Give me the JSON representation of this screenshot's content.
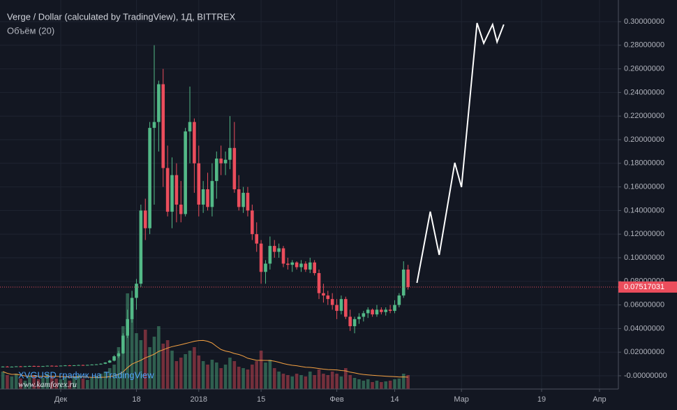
{
  "chart_data": {
    "type": "candlestick",
    "title": "Verge / Dollar (calculated by TradingView), 1Д, BITTREX",
    "volume_label": "Объём (20)",
    "volume_ma_length": 20,
    "watermark": "XVGUSD график на TradingView",
    "watermark_site": "www.kamforex.ru",
    "up_color": "#53b987",
    "down_color": "#eb4d5c",
    "volume_ma_color": "#f5a142",
    "grid": true,
    "x": [
      -13,
      -12,
      -11,
      -10,
      -9,
      -8,
      -7,
      -6,
      -5,
      -4,
      -3,
      -2,
      -1,
      0,
      1,
      2,
      3,
      4,
      5,
      6,
      7,
      8,
      9,
      10,
      11,
      12,
      13,
      14,
      15,
      16,
      17,
      18,
      19,
      20,
      21,
      22,
      23,
      24,
      25,
      26,
      27,
      28,
      29,
      30,
      31,
      32,
      33,
      34,
      35,
      36,
      37,
      38,
      39,
      40,
      41,
      42,
      43,
      44,
      45,
      46,
      47,
      48,
      49,
      50,
      51,
      52,
      53,
      54,
      55,
      56,
      57,
      58,
      59,
      60,
      61,
      62,
      63,
      64,
      65,
      66,
      67,
      68,
      69,
      70,
      71,
      72,
      73,
      74,
      75,
      76,
      77,
      78
    ],
    "open": [
      0.0075,
      0.0078,
      0.0076,
      0.0077,
      0.008,
      0.0079,
      0.0081,
      0.0083,
      0.0082,
      0.008,
      0.0082,
      0.0085,
      0.0084,
      0.0083,
      0.0086,
      0.0088,
      0.0087,
      0.0089,
      0.0091,
      0.009,
      0.0092,
      0.0095,
      0.0097,
      0.0102,
      0.0112,
      0.0128,
      0.0165,
      0.019,
      0.034,
      0.048,
      0.066,
      0.078,
      0.14,
      0.125,
      0.21,
      0.215,
      0.247,
      0.176,
      0.139,
      0.17,
      0.145,
      0.137,
      0.207,
      0.215,
      0.18,
      0.145,
      0.158,
      0.143,
      0.165,
      0.184,
      0.18,
      0.183,
      0.193,
      0.158,
      0.143,
      0.155,
      0.14,
      0.12,
      0.112,
      0.088,
      0.095,
      0.11,
      0.105,
      0.108,
      0.095,
      0.094,
      0.096,
      0.092,
      0.095,
      0.09,
      0.096,
      0.087,
      0.07,
      0.068,
      0.065,
      0.06,
      0.055,
      0.065,
      0.05,
      0.042,
      0.048,
      0.05,
      0.053,
      0.056,
      0.052,
      0.056,
      0.054,
      0.056,
      0.055,
      0.06,
      0.068,
      0.09
    ],
    "high": [
      0.008,
      0.0082,
      0.0079,
      0.0081,
      0.0083,
      0.0082,
      0.0085,
      0.0086,
      0.0084,
      0.0083,
      0.0087,
      0.0088,
      0.0086,
      0.0087,
      0.009,
      0.0091,
      0.009,
      0.0093,
      0.0094,
      0.0093,
      0.0097,
      0.0099,
      0.0105,
      0.0115,
      0.0135,
      0.0175,
      0.021,
      0.036,
      0.056,
      0.072,
      0.082,
      0.145,
      0.15,
      0.215,
      0.28,
      0.25,
      0.26,
      0.195,
      0.185,
      0.18,
      0.165,
      0.21,
      0.245,
      0.218,
      0.195,
      0.165,
      0.172,
      0.18,
      0.19,
      0.195,
      0.19,
      0.22,
      0.215,
      0.17,
      0.16,
      0.16,
      0.145,
      0.13,
      0.115,
      0.098,
      0.118,
      0.115,
      0.112,
      0.11,
      0.1,
      0.098,
      0.097,
      0.098,
      0.097,
      0.1,
      0.098,
      0.09,
      0.078,
      0.072,
      0.07,
      0.065,
      0.068,
      0.067,
      0.056,
      0.05,
      0.053,
      0.055,
      0.058,
      0.057,
      0.06,
      0.058,
      0.058,
      0.06,
      0.064,
      0.07,
      0.097,
      0.094
    ],
    "low": [
      0.0072,
      0.0074,
      0.0072,
      0.0075,
      0.0077,
      0.0076,
      0.0079,
      0.008,
      0.0078,
      0.0077,
      0.008,
      0.0082,
      0.0081,
      0.0081,
      0.0083,
      0.0085,
      0.0084,
      0.0087,
      0.0088,
      0.0087,
      0.009,
      0.0092,
      0.0094,
      0.0099,
      0.0108,
      0.0122,
      0.015,
      0.0185,
      0.032,
      0.045,
      0.056,
      0.075,
      0.115,
      0.12,
      0.145,
      0.19,
      0.16,
      0.135,
      0.125,
      0.13,
      0.13,
      0.135,
      0.18,
      0.155,
      0.135,
      0.138,
      0.14,
      0.135,
      0.15,
      0.17,
      0.17,
      0.175,
      0.155,
      0.14,
      0.138,
      0.135,
      0.115,
      0.105,
      0.078,
      0.078,
      0.09,
      0.1,
      0.1,
      0.092,
      0.09,
      0.088,
      0.09,
      0.088,
      0.088,
      0.087,
      0.085,
      0.065,
      0.062,
      0.06,
      0.056,
      0.048,
      0.052,
      0.048,
      0.038,
      0.036,
      0.044,
      0.046,
      0.049,
      0.05,
      0.05,
      0.052,
      0.051,
      0.053,
      0.053,
      0.058,
      0.066,
      0.073
    ],
    "close": [
      0.0078,
      0.0076,
      0.0077,
      0.008,
      0.0079,
      0.0081,
      0.0083,
      0.0082,
      0.008,
      0.0082,
      0.0085,
      0.0084,
      0.0083,
      0.0086,
      0.0088,
      0.0087,
      0.0089,
      0.0091,
      0.009,
      0.0092,
      0.0095,
      0.0097,
      0.0102,
      0.0112,
      0.0128,
      0.0165,
      0.019,
      0.034,
      0.048,
      0.066,
      0.078,
      0.14,
      0.125,
      0.21,
      0.215,
      0.247,
      0.176,
      0.139,
      0.17,
      0.145,
      0.137,
      0.207,
      0.215,
      0.18,
      0.145,
      0.158,
      0.143,
      0.165,
      0.184,
      0.18,
      0.183,
      0.193,
      0.158,
      0.143,
      0.155,
      0.14,
      0.12,
      0.112,
      0.088,
      0.095,
      0.11,
      0.105,
      0.108,
      0.095,
      0.094,
      0.096,
      0.092,
      0.095,
      0.09,
      0.096,
      0.087,
      0.07,
      0.068,
      0.065,
      0.06,
      0.055,
      0.065,
      0.05,
      0.042,
      0.048,
      0.05,
      0.053,
      0.056,
      0.052,
      0.056,
      0.054,
      0.056,
      0.055,
      0.06,
      0.068,
      0.09,
      0.07517031
    ],
    "volume": [
      25,
      20,
      18,
      22,
      15,
      12,
      18,
      20,
      14,
      16,
      22,
      18,
      15,
      14,
      16,
      12,
      18,
      20,
      15,
      13,
      17,
      19,
      22,
      25,
      30,
      35,
      60,
      90,
      137,
      117,
      80,
      70,
      85,
      60,
      75,
      90,
      65,
      70,
      55,
      40,
      45,
      50,
      55,
      60,
      48,
      40,
      35,
      42,
      38,
      30,
      35,
      45,
      40,
      32,
      30,
      28,
      35,
      40,
      55,
      38,
      42,
      30,
      25,
      22,
      20,
      18,
      22,
      20,
      18,
      25,
      20,
      28,
      22,
      20,
      25,
      22,
      18,
      30,
      20,
      16,
      14,
      12,
      14,
      10,
      12,
      10,
      11,
      12,
      14,
      15,
      22,
      20
    ],
    "forecast": {
      "color": "#ffffff",
      "x": [
        80,
        83,
        85,
        88.5,
        90,
        93.5,
        95,
        97,
        98,
        99.5
      ],
      "values": [
        0.0787,
        0.1391,
        0.1024,
        0.1805,
        0.1598,
        0.2988,
        0.2817,
        0.2976,
        0.2828,
        0.2976
      ]
    },
    "xlim": [
      -13.64,
      125.24
    ],
    "ylim": [
      -0.01124,
      0.31834
    ],
    "xticks": [
      {
        "value": 0,
        "label": "Дек"
      },
      {
        "value": 17,
        "label": "18"
      },
      {
        "value": 31,
        "label": "2018"
      },
      {
        "value": 45,
        "label": "15"
      },
      {
        "value": 62,
        "label": "Фев"
      },
      {
        "value": 75,
        "label": "14"
      },
      {
        "value": 90,
        "label": "Мар"
      },
      {
        "value": 108,
        "label": "19"
      },
      {
        "value": 121,
        "label": "Апр"
      }
    ],
    "yticks": [
      {
        "value": 0.3,
        "label": "0.30000000"
      },
      {
        "value": 0.28,
        "label": "0.28000000"
      },
      {
        "value": 0.26,
        "label": "0.26000000"
      },
      {
        "value": 0.24,
        "label": "0.24000000"
      },
      {
        "value": 0.22,
        "label": "0.22000000"
      },
      {
        "value": 0.2,
        "label": "0.20000000"
      },
      {
        "value": 0.18,
        "label": "0.18000000"
      },
      {
        "value": 0.16,
        "label": "0.16000000"
      },
      {
        "value": 0.14,
        "label": "0.14000000"
      },
      {
        "value": 0.12,
        "label": "0.12000000"
      },
      {
        "value": 0.1,
        "label": "0.10000000"
      },
      {
        "value": 0.08,
        "label": "0.08000000"
      },
      {
        "value": 0.06,
        "label": "0.06000000"
      },
      {
        "value": 0.04,
        "label": "0.04000000"
      },
      {
        "value": 0.02,
        "label": "0.02000000"
      },
      {
        "value": 0,
        "label": "-0.00000000"
      }
    ]
  }
}
